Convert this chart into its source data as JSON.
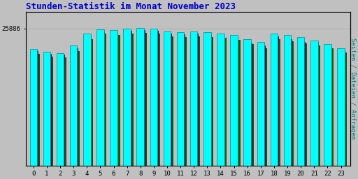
{
  "title": "Stunden-Statistik im Monat November 2023",
  "title_color": "#0000cc",
  "title_fontsize": 9,
  "ylabel_right": "Seiten / Dateien / Anfragen",
  "ylabel_right_color": "#008080",
  "background_color": "#c0c0c0",
  "plot_background_color": "#c0c0c0",
  "categories": [
    0,
    1,
    2,
    3,
    4,
    5,
    6,
    7,
    8,
    9,
    10,
    11,
    12,
    13,
    14,
    15,
    16,
    17,
    18,
    19,
    20,
    21,
    22,
    23
  ],
  "ytick_label": "25886",
  "ylim": [
    0,
    29000
  ],
  "ytick_val": 25886,
  "series": {
    "seiten": [
      22000,
      21500,
      21200,
      22600,
      24900,
      25700,
      25600,
      25800,
      25900,
      25800,
      25300,
      25200,
      25300,
      25100,
      24900,
      24600,
      23900,
      23300,
      24900,
      24700,
      24300,
      23600,
      22900,
      22100
    ],
    "dateien": [
      21600,
      21100,
      20900,
      22100,
      24400,
      25300,
      25200,
      25400,
      25500,
      25400,
      24900,
      24800,
      24900,
      24700,
      23600,
      24200,
      23100,
      22600,
      24400,
      23900,
      23300,
      23200,
      22600,
      21900
    ],
    "anfragen": [
      21100,
      20600,
      20400,
      21600,
      23900,
      24900,
      24700,
      24900,
      25000,
      24900,
      24400,
      24300,
      24400,
      24200,
      24100,
      23700,
      22900,
      22100,
      23900,
      23400,
      23100,
      22700,
      22100,
      21400
    ]
  },
  "color_seiten": "#00ffff",
  "color_dateien": "#0000aa",
  "color_anfragen": "#006600",
  "edge_seiten": "#008888",
  "edge_dateien": "#000066",
  "edge_anfragen": "#003300",
  "grid_color": "#b0b0b0",
  "font_family": "monospace"
}
